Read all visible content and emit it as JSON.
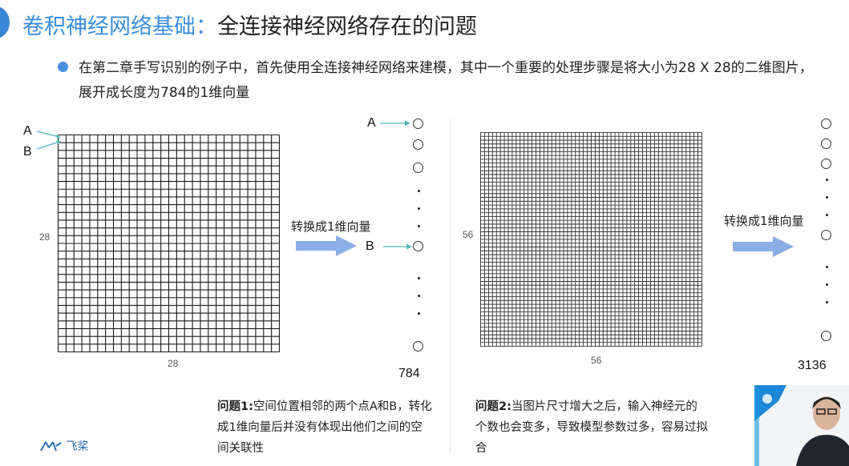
{
  "title": {
    "part1": "卷积神经网络基础：",
    "part2": "全连接神经网络存在的问题"
  },
  "bullet": {
    "text": "在第二章手写识别的例子中，首先使用全连接神经网络来建模，其中一个重要的处理步骤是将大小为28 X 28的二维图片，展开成长度为784的1维向量"
  },
  "left": {
    "grid_cells": 28,
    "label_a": "A",
    "label_b": "B",
    "side_label": "28",
    "bottom_label": "28",
    "arrow_label": "转换成1维向量",
    "vec_label_a": "A",
    "vec_label_b": "B",
    "vector_length": "784",
    "problem_title": "问题1:",
    "problem_text": "空间位置相邻的两个点A和B，转化成1维向量后并没有体现出他们之间的空间关联性"
  },
  "right": {
    "grid_cells": 56,
    "side_label": "56",
    "bottom_label": "56",
    "arrow_label": "转换成1维向量",
    "vector_length": "3136",
    "problem_title": "问题2:",
    "problem_text": "当图片尺寸增大之后，输入神经元的个数也会变多，导致模型参数过多，容易过拟合"
  },
  "logo": {
    "text": "飞桨"
  },
  "colors": {
    "title_accent": "#3a8fe0",
    "arrow": "#8aaee6",
    "pointer": "#4fb8b8"
  }
}
